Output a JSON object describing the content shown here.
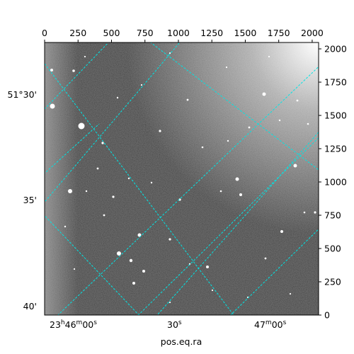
{
  "chart_data": {
    "type": "heatmap",
    "title": "",
    "xlabel": "pos.eq.ra",
    "ylabel": "",
    "pixel_axes": {
      "x_ticks": [
        0,
        250,
        500,
        750,
        1000,
        1250,
        1500,
        1750,
        2000
      ],
      "y_ticks": [
        0,
        250,
        500,
        750,
        1000,
        1250,
        1500,
        1750,
        2000
      ],
      "xlim": [
        0,
        2048
      ],
      "ylim": [
        0,
        2048
      ]
    },
    "ra_ticks": [
      {
        "label": "23h46m00s",
        "h": "23",
        "m": "46",
        "s": "00"
      },
      {
        "label": "30s",
        "value": "30"
      },
      {
        "label": "47m00s",
        "m": "47",
        "s": "00"
      }
    ],
    "dec_ticks": [
      "51°30'",
      "35'",
      "40'"
    ],
    "grid": true,
    "grid_color": "#00e5e5",
    "image_colormap": "grayscale",
    "background_brightness": "dark gray with bright top-right corner"
  }
}
